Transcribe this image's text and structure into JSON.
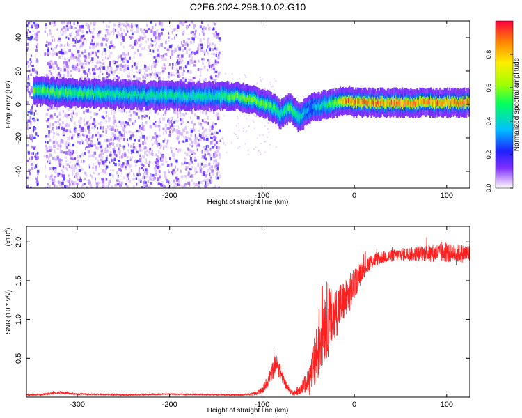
{
  "figure": {
    "title": "C2E6.2024.298.10.02.G10"
  },
  "chart_data": [
    {
      "type": "heatmap",
      "xlabel": "Height of straight line (km)",
      "ylabel": "Frequency (Hz)",
      "xlim": [
        -355,
        125
      ],
      "ylim": [
        -50,
        50
      ],
      "xticks": [
        -300,
        -200,
        -100,
        0,
        100
      ],
      "yticks": [
        -40,
        -20,
        0,
        20,
        40
      ],
      "colorbar": {
        "label": "Normalized spectral amplitude",
        "range": [
          0,
          1
        ],
        "ticks": [
          0.0,
          0.2,
          0.4,
          0.6,
          0.8
        ]
      },
      "ridge": {
        "x": [
          -345,
          -300,
          -250,
          -200,
          -150,
          -130,
          -110,
          -95,
          -85,
          -80,
          -75,
          -70,
          -65,
          -60,
          -55,
          -50,
          -45,
          -40,
          -30,
          -20,
          -10,
          -5,
          0,
          10,
          50,
          100,
          125
        ],
        "freq": [
          8,
          7,
          6,
          5,
          5,
          5,
          3,
          0,
          -3,
          -6,
          -4,
          -2,
          -5,
          -8,
          -6,
          -3,
          -2,
          -1,
          0,
          1,
          2,
          3,
          1,
          1,
          1,
          1,
          1
        ],
        "amplitude": [
          0.55,
          0.5,
          0.45,
          0.45,
          0.45,
          0.55,
          0.6,
          0.55,
          0.5,
          0.45,
          0.5,
          0.55,
          0.5,
          0.45,
          0.4,
          0.3,
          0.3,
          0.4,
          0.45,
          0.6,
          0.8,
          0.9,
          0.85,
          0.85,
          0.85,
          0.85,
          0.85
        ]
      },
      "noise_region_x": [
        -355,
        -145
      ]
    },
    {
      "type": "line",
      "xlabel": "Height of straight line (km)",
      "ylabel": "SNR (10 * v/v)",
      "y_multiplier_label": "(x10",
      "y_multiplier_exp": "4",
      "xlim": [
        -355,
        125
      ],
      "ylim": [
        0,
        2.2
      ],
      "xticks": [
        -300,
        -200,
        -100,
        0,
        100
      ],
      "yticks": [
        0.5,
        1.0,
        1.5,
        2.0
      ],
      "line_color": "#ff2020",
      "envelope": {
        "x": [
          -355,
          -340,
          -320,
          -300,
          -250,
          -200,
          -150,
          -120,
          -110,
          -100,
          -95,
          -88,
          -85,
          -80,
          -75,
          -70,
          -65,
          -60,
          -55,
          -50,
          -45,
          -40,
          -35,
          -30,
          -25,
          -20,
          -15,
          -10,
          -5,
          0,
          5,
          10,
          15,
          20,
          30,
          50,
          70,
          90,
          110,
          125
        ],
        "y": [
          0.03,
          0.03,
          0.06,
          0.04,
          0.03,
          0.04,
          0.03,
          0.03,
          0.04,
          0.08,
          0.18,
          0.35,
          0.45,
          0.32,
          0.18,
          0.08,
          0.05,
          0.07,
          0.15,
          0.2,
          0.35,
          0.6,
          0.9,
          1.0,
          0.95,
          1.1,
          1.2,
          1.25,
          1.35,
          1.45,
          1.55,
          1.65,
          1.72,
          1.76,
          1.8,
          1.84,
          1.85,
          1.86,
          1.85,
          1.85
        ],
        "noise": [
          0.01,
          0.01,
          0.02,
          0.01,
          0.01,
          0.01,
          0.01,
          0.01,
          0.02,
          0.04,
          0.08,
          0.12,
          0.12,
          0.1,
          0.06,
          0.03,
          0.03,
          0.05,
          0.1,
          0.15,
          0.3,
          0.45,
          0.55,
          0.5,
          0.45,
          0.35,
          0.3,
          0.25,
          0.25,
          0.2,
          0.15,
          0.12,
          0.1,
          0.1,
          0.08,
          0.08,
          0.1,
          0.12,
          0.12,
          0.12
        ]
      }
    }
  ]
}
